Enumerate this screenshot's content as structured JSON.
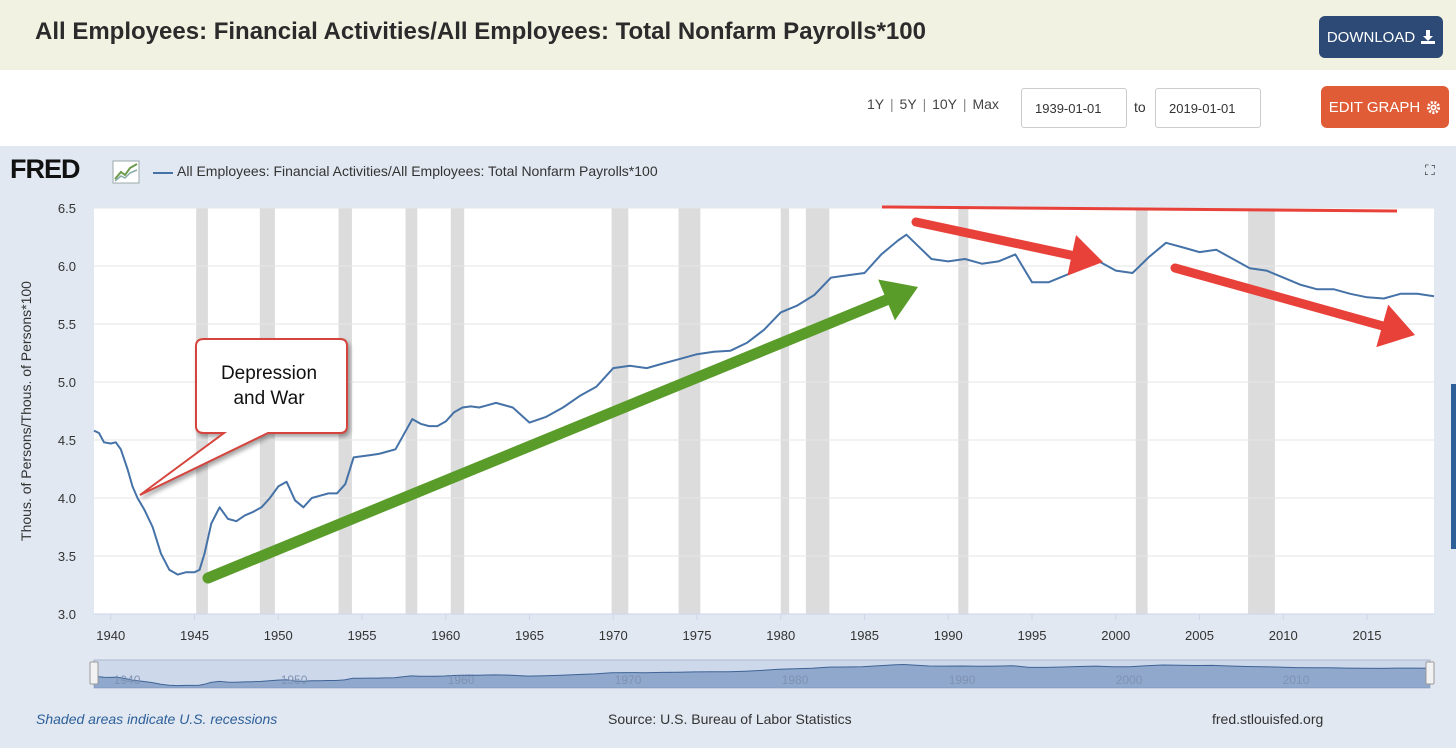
{
  "header": {
    "title": "All Employees: Financial Activities/All Employees: Total Nonfarm Payrolls*100",
    "download_label": "DOWNLOAD",
    "edit_label": "EDIT GRAPH"
  },
  "controls": {
    "range_links": [
      "1Y",
      "5Y",
      "10Y",
      "Max"
    ],
    "start_date": "1939-01-01",
    "to_label": "to",
    "end_date": "2019-01-01"
  },
  "legend": {
    "logo": "FRED",
    "series_name": "All Employees: Financial Activities/All Employees: Total Nonfarm Payrolls*100",
    "series_color": "#4572a7"
  },
  "annotation": {
    "callout_text": "Depression\nand War"
  },
  "footer": {
    "note": "Shaded areas indicate U.S. recessions",
    "source": "Source: U.S. Bureau of Labor Statistics",
    "site": "fred.stlouisfed.org"
  },
  "colors": {
    "line": "#4572a7",
    "recession": "#dcdcdc",
    "green_arrow": "#5a9c2a",
    "red_arrow": "#e8413a"
  },
  "chart_data": {
    "type": "line",
    "title": "All Employees: Financial Activities/All Employees: Total Nonfarm Payrolls*100",
    "xlabel": "",
    "ylabel": "Thous. of Persons/Thous. of Persons*100",
    "xlim": [
      1939,
      2019
    ],
    "ylim": [
      3.0,
      6.5
    ],
    "x_ticks": [
      1940,
      1945,
      1950,
      1955,
      1960,
      1965,
      1970,
      1975,
      1980,
      1985,
      1990,
      1995,
      2000,
      2005,
      2010,
      2015
    ],
    "y_ticks": [
      3.0,
      3.5,
      4.0,
      4.5,
      5.0,
      5.5,
      6.0,
      6.5
    ],
    "recessions": [
      [
        1945.1,
        1945.8
      ],
      [
        1948.9,
        1949.8
      ],
      [
        1953.6,
        1954.4
      ],
      [
        1957.6,
        1958.3
      ],
      [
        1960.3,
        1961.1
      ],
      [
        1969.9,
        1970.9
      ],
      [
        1973.9,
        1975.2
      ],
      [
        1980.0,
        1980.5
      ],
      [
        1981.5,
        1982.9
      ],
      [
        1990.6,
        1991.2
      ],
      [
        2001.2,
        2001.9
      ],
      [
        2007.9,
        2009.5
      ]
    ],
    "series": [
      {
        "name": "All Employees: Financial Activities/All Employees: Total Nonfarm Payrolls*100",
        "x": [
          1939.0,
          1939.3,
          1939.6,
          1940.0,
          1940.3,
          1940.6,
          1941.0,
          1941.3,
          1941.6,
          1942.0,
          1942.5,
          1943.0,
          1943.5,
          1944.0,
          1944.5,
          1945.0,
          1945.3,
          1945.6,
          1946.0,
          1946.5,
          1947.0,
          1947.5,
          1948.0,
          1948.5,
          1949.0,
          1949.5,
          1950.0,
          1950.5,
          1951.0,
          1951.5,
          1952.0,
          1952.5,
          1953.0,
          1953.5,
          1954.0,
          1954.5,
          1955.0,
          1955.5,
          1956.0,
          1956.5,
          1957.0,
          1957.5,
          1958.0,
          1958.5,
          1959.0,
          1959.5,
          1960.0,
          1960.5,
          1961.0,
          1961.5,
          1962.0,
          1962.5,
          1963.0,
          1964.0,
          1965.0,
          1966.0,
          1967.0,
          1968.0,
          1969.0,
          1970.0,
          1971.0,
          1972.0,
          1973.0,
          1974.0,
          1975.0,
          1976.0,
          1977.0,
          1978.0,
          1979.0,
          1980.0,
          1981.0,
          1982.0,
          1983.0,
          1984.0,
          1985.0,
          1986.0,
          1987.0,
          1987.5,
          1988.0,
          1989.0,
          1990.0,
          1991.0,
          1992.0,
          1993.0,
          1994.0,
          1995.0,
          1996.0,
          1997.0,
          1998.0,
          1999.0,
          2000.0,
          2001.0,
          2002.0,
          2003.0,
          2004.0,
          2005.0,
          2006.0,
          2007.0,
          2008.0,
          2009.0,
          2010.0,
          2011.0,
          2012.0,
          2013.0,
          2014.0,
          2015.0,
          2016.0,
          2017.0,
          2018.0,
          2019.0
        ],
        "y": [
          4.58,
          4.56,
          4.48,
          4.47,
          4.48,
          4.42,
          4.25,
          4.1,
          4.0,
          3.9,
          3.75,
          3.52,
          3.38,
          3.34,
          3.36,
          3.36,
          3.38,
          3.52,
          3.78,
          3.92,
          3.82,
          3.8,
          3.85,
          3.88,
          3.92,
          4.0,
          4.1,
          4.14,
          3.98,
          3.92,
          4.0,
          4.02,
          4.04,
          4.04,
          4.12,
          4.35,
          4.36,
          4.37,
          4.38,
          4.4,
          4.42,
          4.55,
          4.68,
          4.64,
          4.62,
          4.62,
          4.66,
          4.74,
          4.78,
          4.79,
          4.78,
          4.8,
          4.82,
          4.78,
          4.65,
          4.7,
          4.78,
          4.88,
          4.96,
          5.12,
          5.14,
          5.12,
          5.16,
          5.2,
          5.24,
          5.26,
          5.27,
          5.34,
          5.45,
          5.6,
          5.66,
          5.75,
          5.9,
          5.92,
          5.94,
          6.1,
          6.22,
          6.27,
          6.2,
          6.06,
          6.04,
          6.06,
          6.02,
          6.04,
          6.1,
          5.86,
          5.86,
          5.92,
          5.98,
          6.04,
          5.96,
          5.94,
          6.08,
          6.2,
          6.16,
          6.12,
          6.14,
          6.06,
          5.98,
          5.96,
          5.9,
          5.84,
          5.8,
          5.8,
          5.76,
          5.73,
          5.72,
          5.76,
          5.76,
          5.74
        ]
      }
    ]
  }
}
